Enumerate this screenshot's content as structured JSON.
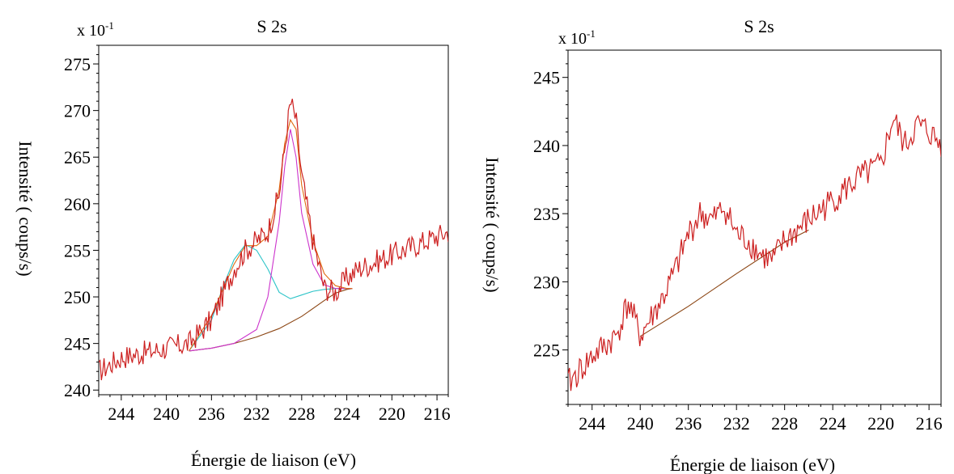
{
  "charts": [
    {
      "title": "S 2s",
      "multiplier": "x 10",
      "multiplier_exp": "-1",
      "xlabel": "Énergie de liaison (eV)",
      "ylabel": "Intensité ( coups/s)"
    },
    {
      "title": "S 2s",
      "multiplier": "x 10",
      "multiplier_exp": "-1",
      "xlabel": "Énergie de liaison (eV)",
      "ylabel": "Intensité ( coups/s)"
    }
  ],
  "colors": {
    "raw": "#cc2020",
    "envelope": "#e06a10",
    "component_1": "#2cc4c8",
    "component_2": "#cc33cc",
    "background": "#8b4513",
    "frame": "#000000"
  },
  "chart_data": [
    {
      "type": "line",
      "title": "S 2s",
      "xlabel": "Énergie de liaison (eV)",
      "ylabel": "Intensité ( coups/s)",
      "x_reversed": true,
      "xlim": [
        246,
        215
      ],
      "ylim": [
        239.5,
        277
      ],
      "xticks": [
        244,
        240,
        236,
        232,
        228,
        224,
        220,
        216
      ],
      "yticks": [
        240,
        245,
        250,
        255,
        260,
        265,
        270,
        275
      ],
      "grid": false,
      "series": [
        {
          "role": "raw",
          "color": "#cc2020",
          "x": [
            246,
            244,
            242,
            240,
            238,
            236,
            234,
            233,
            232,
            231,
            230,
            229.5,
            229,
            228.5,
            228,
            227,
            226,
            225,
            224,
            223,
            222,
            220,
            218,
            216,
            215
          ],
          "y": [
            242,
            243.5,
            244,
            244.5,
            245,
            247.5,
            253,
            255,
            256,
            257,
            261,
            266,
            271,
            269,
            263,
            256,
            251,
            250.5,
            252,
            253,
            253.5,
            254.5,
            255.5,
            256.5,
            257
          ]
        },
        {
          "role": "envelope",
          "color": "#e06a10",
          "x": [
            238,
            236,
            234,
            233,
            232,
            231,
            230,
            229.5,
            229,
            228.5,
            228,
            227,
            226,
            225,
            224,
            223.5
          ],
          "y": [
            244.2,
            248,
            253.5,
            255.5,
            255.5,
            256.5,
            261.5,
            266.5,
            269,
            268,
            262,
            256,
            252.5,
            251.2,
            250.9,
            250.9
          ]
        },
        {
          "role": "component_1",
          "color": "#2cc4c8",
          "x": [
            238,
            236,
            235,
            234,
            233,
            232,
            231,
            230,
            229,
            228,
            227,
            226,
            225,
            224,
            223.5
          ],
          "y": [
            244.2,
            247.5,
            251,
            254,
            255.6,
            255,
            253,
            250.5,
            249.8,
            250.2,
            250.6,
            250.8,
            250.9,
            250.9,
            250.9
          ]
        },
        {
          "role": "component_2",
          "color": "#cc33cc",
          "x": [
            238,
            236,
            234,
            232,
            231,
            230,
            229.5,
            229,
            228.5,
            228,
            227,
            226,
            225,
            224,
            223.5
          ],
          "y": [
            244.2,
            244.5,
            245,
            246.5,
            250,
            258,
            264,
            268,
            265,
            259,
            253.5,
            251.3,
            250.9,
            250.9,
            250.9
          ]
        },
        {
          "role": "background",
          "color": "#8b4513",
          "x": [
            238,
            236,
            234,
            232,
            230,
            228,
            226,
            225,
            224,
            223.5
          ],
          "y": [
            244.2,
            244.5,
            245,
            245.7,
            246.6,
            247.9,
            249.6,
            250.4,
            250.8,
            250.9
          ]
        }
      ]
    },
    {
      "type": "line",
      "title": "S 2s",
      "xlabel": "Énergie de liaison (eV)",
      "ylabel": "Intensité ( coups/s)",
      "x_reversed": true,
      "xlim": [
        246,
        215
      ],
      "ylim": [
        221,
        247
      ],
      "xticks": [
        244,
        240,
        236,
        232,
        228,
        224,
        220,
        216
      ],
      "yticks": [
        225,
        230,
        235,
        240,
        245
      ],
      "grid": false,
      "series": [
        {
          "role": "raw",
          "color": "#cc2020",
          "x": [
            246,
            244,
            242,
            241,
            240,
            239,
            238,
            237,
            236,
            235,
            234,
            233,
            232,
            231,
            230,
            229,
            228,
            226,
            224,
            222,
            220,
            219,
            218,
            217,
            216,
            215
          ],
          "y": [
            222.5,
            224.5,
            226,
            228.5,
            226,
            227.5,
            229,
            231,
            233.5,
            235,
            234.5,
            235.5,
            233.5,
            233,
            232,
            231.5,
            233,
            234.5,
            236,
            237.5,
            238.5,
            242,
            240,
            241.5,
            241,
            240
          ]
        },
        {
          "role": "background",
          "color": "#8b4513",
          "x": [
            240,
            236,
            232,
            228,
            226
          ],
          "y": [
            226,
            228.2,
            230.6,
            232.9,
            233.8
          ]
        }
      ]
    }
  ]
}
